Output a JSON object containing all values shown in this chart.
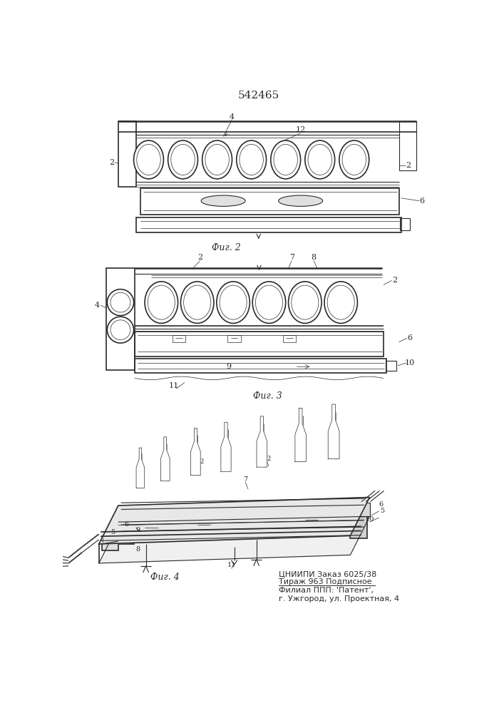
{
  "title": "542465",
  "bg_color": "#ffffff",
  "line_color": "#2a2a2a",
  "fig2_label": "Фиг. 2",
  "fig3_label": "Фиг. 3",
  "fig4_label": "Фиг. 4",
  "publisher_lines": [
    "ЦНИИПИ Заказ 6025/38",
    "Тираж 963 Подписное",
    "Филиал ППП: 'Патент',",
    "г. Ужгород, ул. Проектная, 4"
  ]
}
